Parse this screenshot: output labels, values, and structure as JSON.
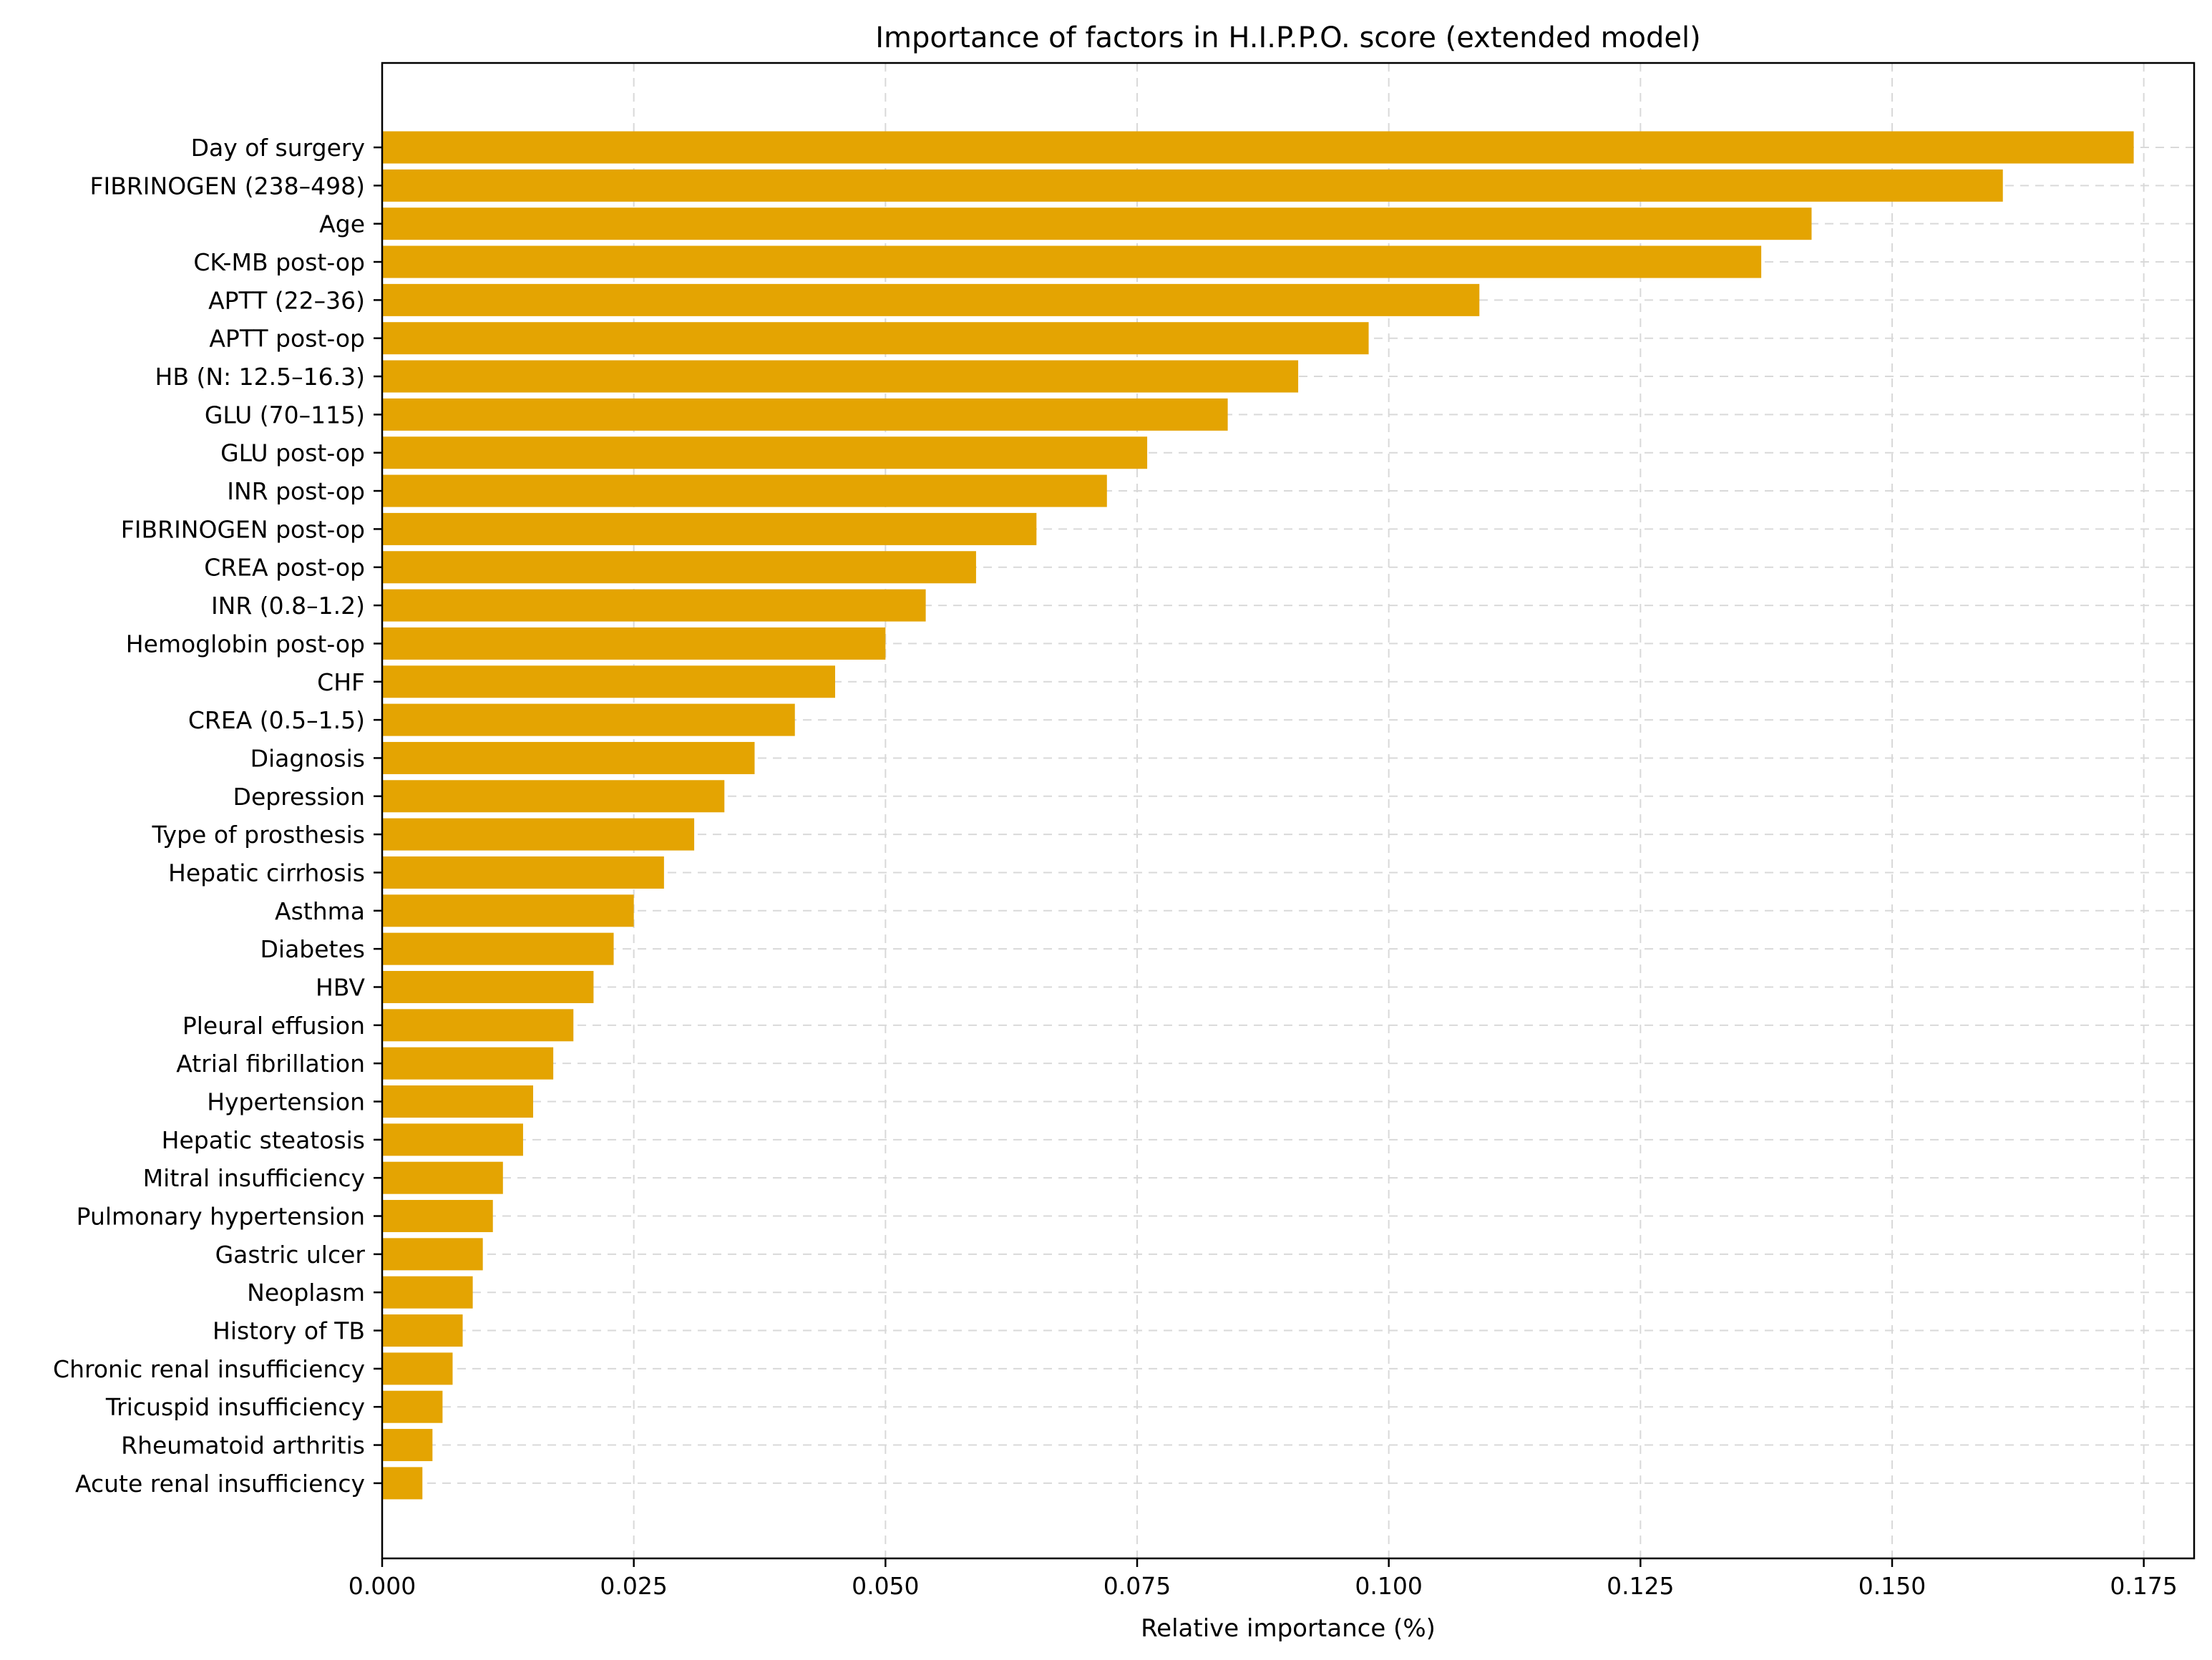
{
  "chart_data": {
    "type": "bar",
    "orientation": "horizontal",
    "title": "Importance of factors in H.I.P.P.O. score (extended model)",
    "xlabel": "Relative importance (%)",
    "ylabel": "",
    "xlim": [
      0,
      0.18
    ],
    "xticks": [
      0.0,
      0.025,
      0.05,
      0.075,
      0.1,
      0.125,
      0.15,
      0.175
    ],
    "xtick_labels": [
      "0.000",
      "0.025",
      "0.050",
      "0.075",
      "0.100",
      "0.125",
      "0.150",
      "0.175"
    ],
    "grid": true,
    "bar_color": "#E4A402",
    "categories": [
      "Day of surgery",
      "FIBRINOGEN (238–498)",
      "Age",
      "CK-MB post-op",
      "APTT (22–36)",
      "APTT post-op",
      "HB (N: 12.5–16.3)",
      "GLU (70–115)",
      "GLU post-op",
      "INR post-op",
      "FIBRINOGEN post-op",
      "CREA post-op",
      "INR (0.8–1.2)",
      "Hemoglobin post-op",
      "CHF",
      "CREA (0.5–1.5)",
      "Diagnosis",
      "Depression",
      "Type of prosthesis",
      "Hepatic cirrhosis",
      "Asthma",
      "Diabetes",
      "HBV",
      "Pleural effusion",
      "Atrial fibrillation",
      "Hypertension",
      "Hepatic steatosis",
      "Mitral insufficiency",
      "Pulmonary hypertension",
      "Gastric ulcer",
      "Neoplasm",
      "History of TB",
      "Chronic renal insufficiency",
      "Tricuspid insufficiency",
      "Rheumatoid arthritis",
      "Acute renal insufficiency"
    ],
    "values": [
      0.174,
      0.161,
      0.142,
      0.137,
      0.109,
      0.098,
      0.091,
      0.084,
      0.076,
      0.072,
      0.065,
      0.059,
      0.054,
      0.05,
      0.045,
      0.041,
      0.037,
      0.034,
      0.031,
      0.028,
      0.025,
      0.023,
      0.021,
      0.019,
      0.017,
      0.015,
      0.014,
      0.012,
      0.011,
      0.01,
      0.009,
      0.008,
      0.007,
      0.006,
      0.005,
      0.004
    ]
  }
}
